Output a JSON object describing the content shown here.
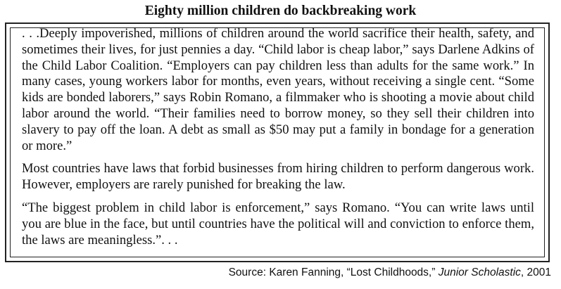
{
  "title": "Eighty million children do backbreaking work",
  "paragraphs": [
    ". . .Deeply impoverished, millions of children around the world sacrifice their health, safety, and sometimes their lives, for just pennies a day. “Child labor is cheap labor,” says Darlene Adkins of the Child Labor Coalition. “Employers can pay children less than adults for the same work.” In many cases, young workers labor for months, even years, without receiving a single cent. “Some kids are bonded laborers,” says Robin Romano, a filmmaker who is shooting a movie about child labor around the world. “Their families need to borrow money, so they sell their children into slavery to pay off the loan. A debt as small as $50 may put a family in bondage for a generation or more.”",
    "Most countries have laws that forbid businesses from hiring children to perform dangerous work. However, employers are rarely punished for breaking the law.",
    "“The biggest problem in child labor is enforcement,” says Romano. “You can write laws until you are blue in the face, but until countries have the political will and conviction to enforce them, the laws are meaningless.”. . ."
  ],
  "source": {
    "prefix": "Source: Karen Fanning, “Lost Childhoods,” ",
    "publication": "Junior Scholastic",
    "suffix": ", 2001"
  }
}
